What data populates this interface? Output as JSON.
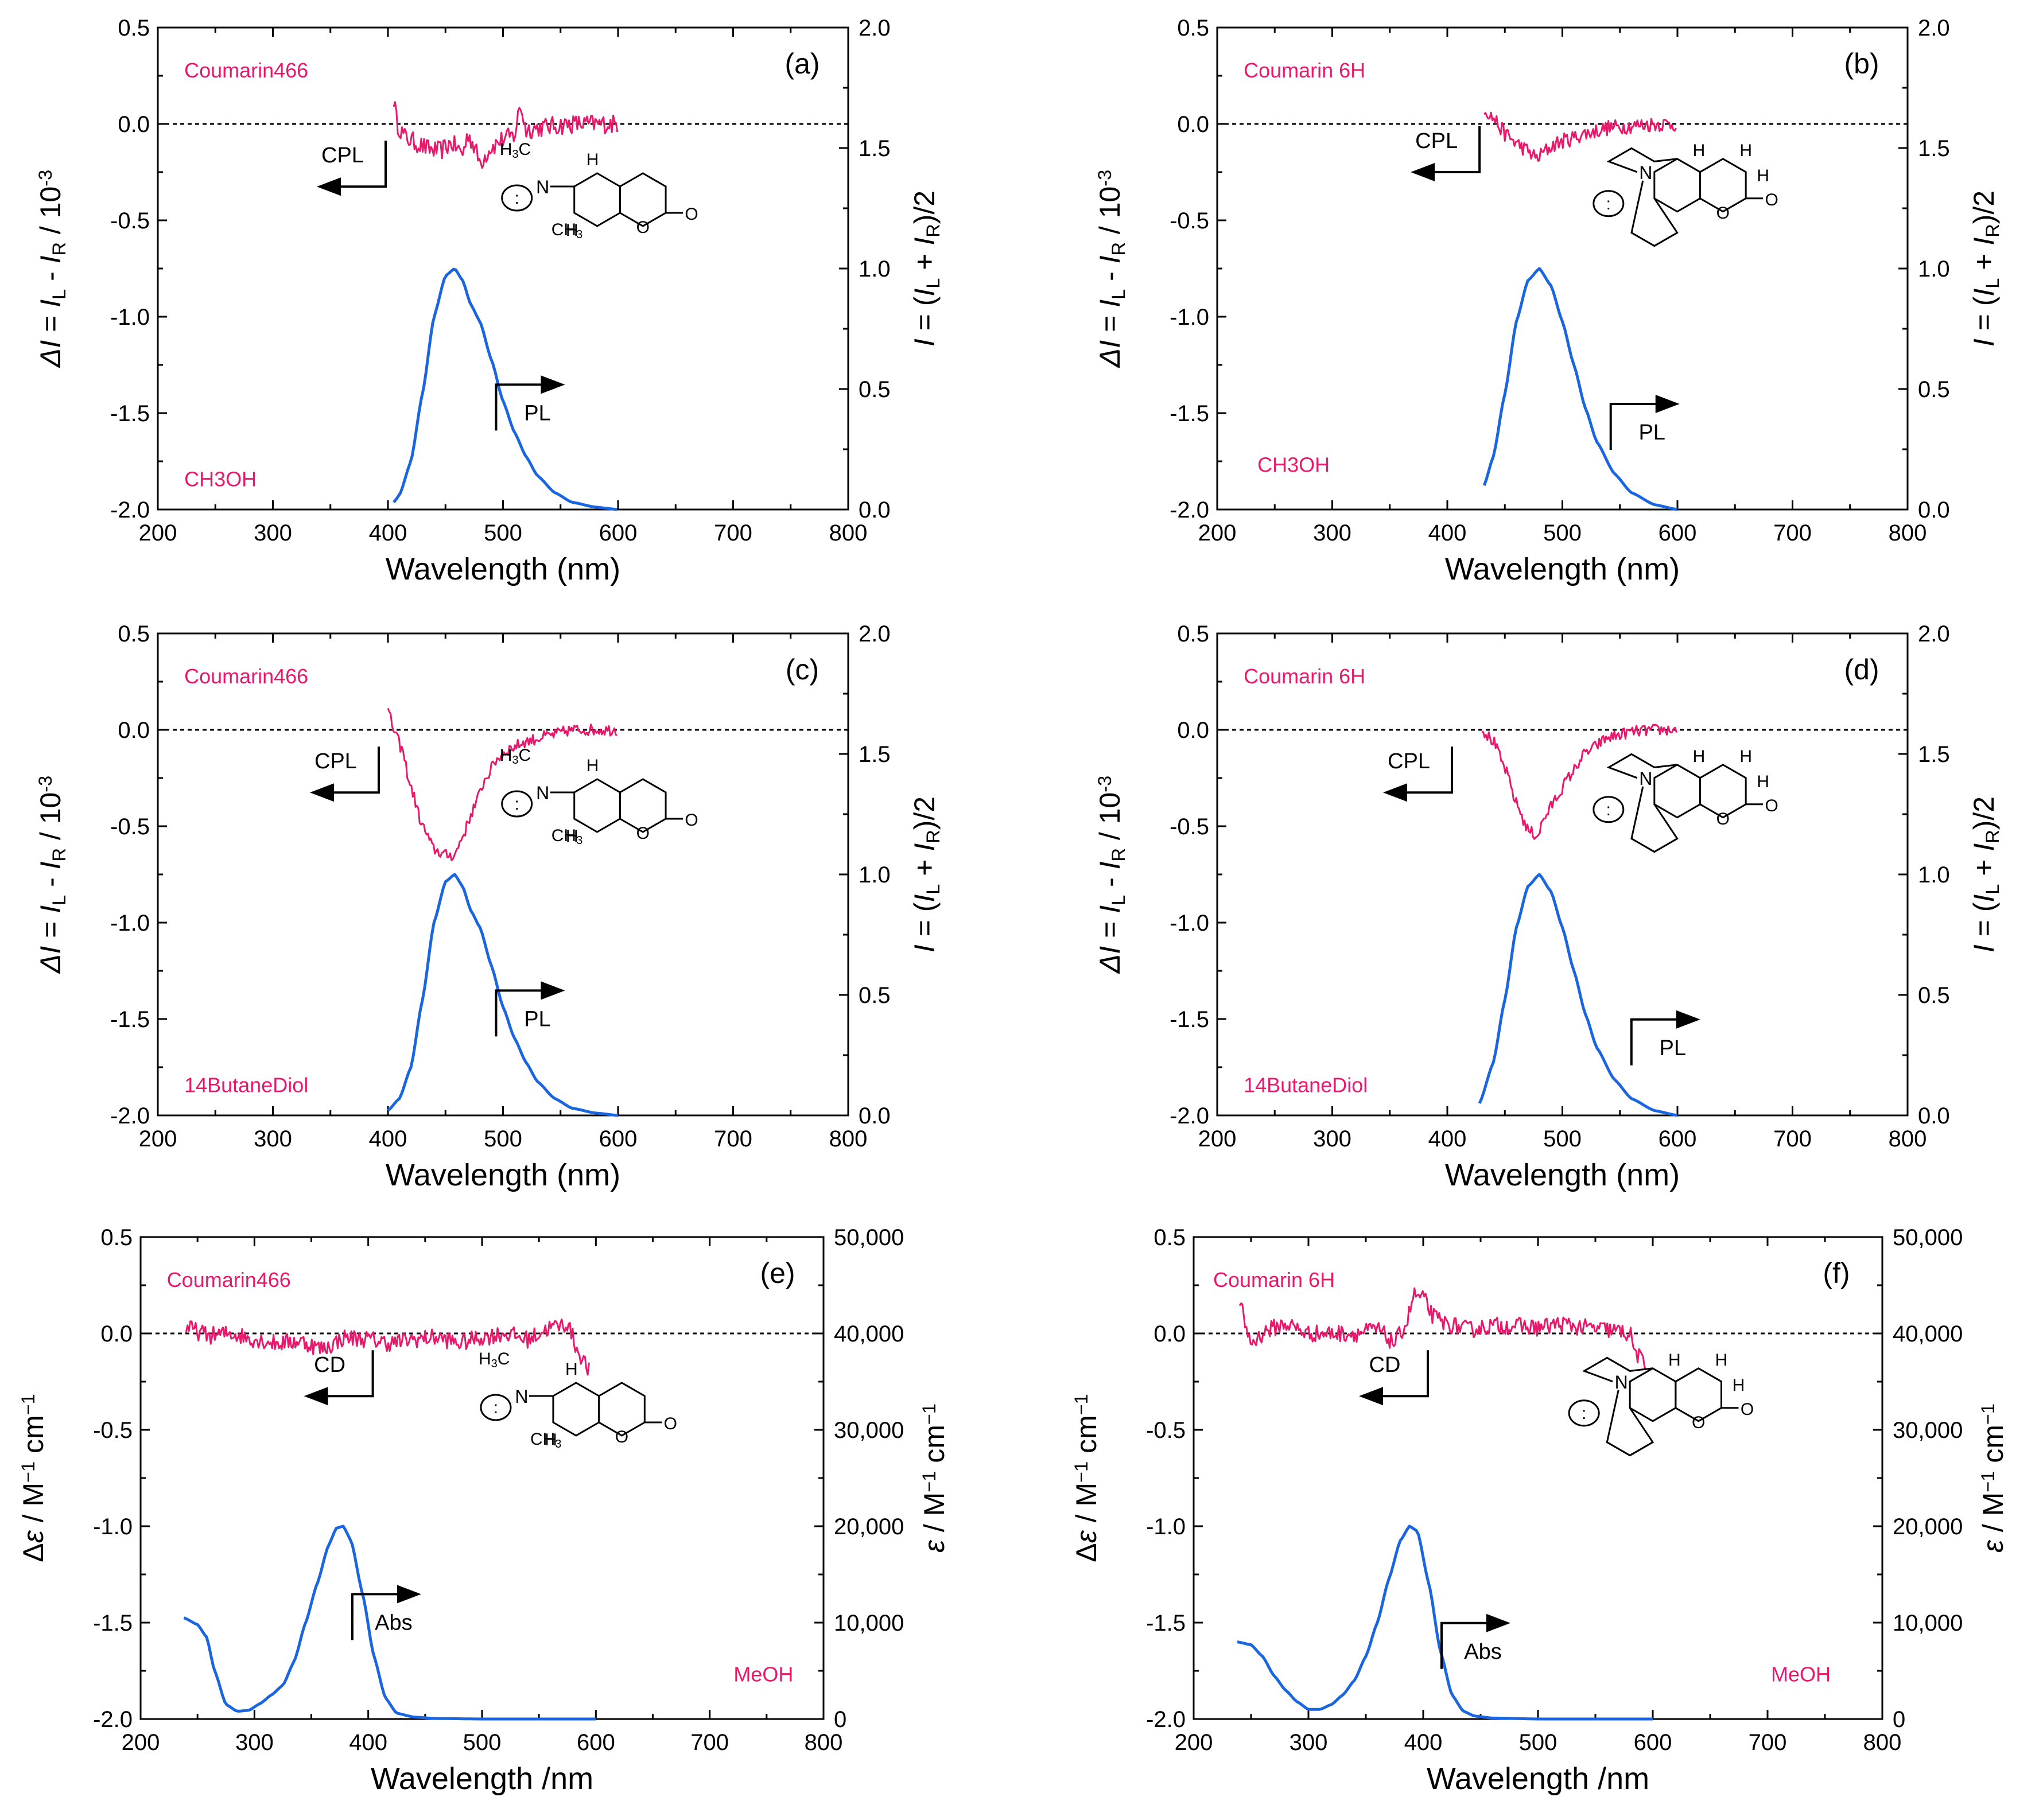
{
  "colors": {
    "cpl": "#e8186b",
    "pl": "#1a66e0",
    "axis": "#000000",
    "label": "#e8186b"
  },
  "chart_data": [
    {
      "type": "line",
      "panel": "(a)",
      "dye": "Coumarin466",
      "solvent": "CH3OH",
      "xlabel": "Wavelength (nm)",
      "xlim": [
        200,
        800
      ],
      "xticks": [
        200,
        300,
        400,
        500,
        600,
        700,
        800
      ],
      "ylabel_left": "ΔI = I_L - I_R / 10^-3",
      "ylim_left": [
        -2.0,
        0.5
      ],
      "yticks_left": [
        "0.5",
        "0.0",
        "-0.5",
        "-1.0",
        "-1.5",
        "-2.0"
      ],
      "ylabel_right": "I = (I_L + I_R)/2",
      "ylim_right": [
        0.0,
        2.0
      ],
      "yticks_right": [
        "2.0",
        "1.5",
        "1.0",
        "0.5",
        "0.0"
      ],
      "cpl_label": "CPL",
      "pl_label": "PL",
      "series": [
        {
          "name": "CPL",
          "axis": "left",
          "noise": 0.05,
          "x": [
            405,
            408,
            415,
            425,
            435,
            445,
            455,
            465,
            470,
            475,
            480,
            490,
            500,
            510,
            515,
            520,
            530,
            545,
            560,
            580,
            600
          ],
          "y": [
            0.13,
            0.0,
            -0.07,
            -0.1,
            -0.13,
            -0.14,
            -0.1,
            -0.15,
            -0.05,
            -0.12,
            -0.2,
            -0.12,
            -0.08,
            -0.06,
            0.1,
            -0.03,
            -0.02,
            -0.01,
            0.0,
            0.0,
            0.0
          ]
        },
        {
          "name": "PL",
          "axis": "right",
          "noise": 0,
          "x": [
            405,
            410,
            420,
            430,
            440,
            450,
            458,
            465,
            472,
            480,
            490,
            500,
            510,
            520,
            530,
            545,
            560,
            580,
            600
          ],
          "y": [
            0.03,
            0.06,
            0.2,
            0.48,
            0.8,
            0.97,
            1.0,
            0.95,
            0.85,
            0.78,
            0.62,
            0.45,
            0.32,
            0.22,
            0.14,
            0.07,
            0.03,
            0.01,
            0.0
          ]
        }
      ]
    },
    {
      "type": "line",
      "panel": "(b)",
      "dye": "Coumarin 6H",
      "solvent": "CH3OH",
      "xlabel": "Wavelength (nm)",
      "xlim": [
        200,
        800
      ],
      "xticks": [
        200,
        300,
        400,
        500,
        600,
        700,
        800
      ],
      "ylabel_left": "ΔI = I_L - I_R / 10^-3",
      "ylim_left": [
        -2.0,
        0.5
      ],
      "yticks_left": [
        "0.5",
        "0.0",
        "-0.5",
        "-1.0",
        "-1.5",
        "-2.0"
      ],
      "ylabel_right": "I = (I_L + I_R)/2",
      "ylim_right": [
        0.0,
        2.0
      ],
      "yticks_right": [
        "2.0",
        "1.5",
        "1.0",
        "0.5",
        "0.0"
      ],
      "cpl_label": "CPL",
      "pl_label": "PL",
      "series": [
        {
          "name": "CPL",
          "axis": "left",
          "noise": 0.04,
          "x": [
            432,
            440,
            450,
            460,
            470,
            478,
            485,
            495,
            505,
            520,
            540,
            560,
            580,
            600
          ],
          "y": [
            0.08,
            0.03,
            -0.05,
            -0.1,
            -0.14,
            -0.18,
            -0.14,
            -0.1,
            -0.08,
            -0.05,
            -0.02,
            -0.01,
            0.0,
            0.0
          ]
        },
        {
          "name": "PL",
          "axis": "right",
          "noise": 0,
          "x": [
            432,
            440,
            450,
            460,
            470,
            480,
            490,
            500,
            510,
            520,
            530,
            545,
            560,
            580,
            600
          ],
          "y": [
            0.1,
            0.22,
            0.48,
            0.78,
            0.95,
            1.0,
            0.93,
            0.78,
            0.6,
            0.42,
            0.28,
            0.15,
            0.07,
            0.02,
            0.0
          ]
        }
      ]
    },
    {
      "type": "line",
      "panel": "(c)",
      "dye": "Coumarin466",
      "solvent": "14ButaneDiol",
      "xlabel": "Wavelength (nm)",
      "xlim": [
        200,
        800
      ],
      "xticks": [
        200,
        300,
        400,
        500,
        600,
        700,
        800
      ],
      "ylabel_left": "ΔI = I_L - I_R / 10^-3",
      "ylim_left": [
        -2.0,
        0.5
      ],
      "yticks_left": [
        "0.5",
        "0.0",
        "-0.5",
        "-1.0",
        "-1.5",
        "-2.0"
      ],
      "ylabel_right": "I = (I_L + I_R)/2",
      "ylim_right": [
        0.0,
        2.0
      ],
      "yticks_right": [
        "2.0",
        "1.5",
        "1.0",
        "0.5",
        "0.0"
      ],
      "cpl_label": "CPL",
      "pl_label": "PL",
      "series": [
        {
          "name": "CPL",
          "axis": "left",
          "noise": 0.03,
          "x": [
            400,
            405,
            412,
            420,
            430,
            440,
            450,
            458,
            465,
            475,
            485,
            495,
            505,
            520,
            540,
            560,
            580,
            600
          ],
          "y": [
            0.1,
            0.0,
            -0.1,
            -0.3,
            -0.5,
            -0.62,
            -0.65,
            -0.65,
            -0.55,
            -0.4,
            -0.25,
            -0.15,
            -0.1,
            -0.06,
            -0.03,
            0.0,
            0.0,
            0.0
          ]
        },
        {
          "name": "PL",
          "axis": "right",
          "noise": 0,
          "x": [
            400,
            410,
            420,
            430,
            440,
            450,
            458,
            465,
            472,
            480,
            490,
            500,
            510,
            520,
            530,
            545,
            560,
            580,
            600
          ],
          "y": [
            0.02,
            0.07,
            0.2,
            0.48,
            0.8,
            0.97,
            1.0,
            0.95,
            0.85,
            0.78,
            0.62,
            0.45,
            0.32,
            0.22,
            0.14,
            0.07,
            0.03,
            0.01,
            0.0
          ]
        }
      ]
    },
    {
      "type": "line",
      "panel": "(d)",
      "dye": "Coumarin 6H",
      "solvent": "14ButaneDiol",
      "xlabel": "Wavelength (nm)",
      "xlim": [
        200,
        800
      ],
      "xticks": [
        200,
        300,
        400,
        500,
        600,
        700,
        800
      ],
      "ylabel_left": "ΔI = I_L - I_R / 10^-3",
      "ylim_left": [
        -2.0,
        0.5
      ],
      "yticks_left": [
        "0.5",
        "0.0",
        "-0.5",
        "-1.0",
        "-1.5",
        "-2.0"
      ],
      "ylabel_right": "I = (I_L + I_R)/2",
      "ylim_right": [
        0.0,
        2.0
      ],
      "yticks_right": [
        "2.0",
        "1.5",
        "1.0",
        "0.5",
        "0.0"
      ],
      "cpl_label": "CPL",
      "pl_label": "PL",
      "series": [
        {
          "name": "CPL",
          "axis": "left",
          "noise": 0.03,
          "x": [
            430,
            440,
            450,
            460,
            470,
            478,
            485,
            495,
            505,
            520,
            540,
            560,
            580,
            600
          ],
          "y": [
            0.0,
            -0.06,
            -0.2,
            -0.38,
            -0.52,
            -0.55,
            -0.45,
            -0.35,
            -0.25,
            -0.12,
            -0.04,
            -0.01,
            0.0,
            0.0
          ]
        },
        {
          "name": "PL",
          "axis": "right",
          "noise": 0,
          "x": [
            428,
            440,
            450,
            460,
            470,
            480,
            490,
            500,
            510,
            520,
            530,
            545,
            560,
            580,
            600
          ],
          "y": [
            0.05,
            0.22,
            0.48,
            0.78,
            0.95,
            1.0,
            0.93,
            0.78,
            0.6,
            0.42,
            0.28,
            0.15,
            0.07,
            0.02,
            0.0
          ]
        }
      ]
    },
    {
      "type": "line",
      "panel": "(e)",
      "dye": "Coumarin466",
      "solvent": "MeOH",
      "xlabel": "Wavelength /nm",
      "xlim": [
        200,
        800
      ],
      "xticks": [
        200,
        300,
        400,
        500,
        600,
        700,
        800
      ],
      "ylabel_left": "Δε / M^-1 cm^-1",
      "ylim_left": [
        -2.0,
        0.5
      ],
      "yticks_left": [
        "0.5",
        "0.0",
        "-0.5",
        "-1.0",
        "-1.5",
        "-2.0"
      ],
      "ylabel_right": "ε / M^-1 cm^-1",
      "ylim_right": [
        0,
        50000
      ],
      "yticks_right": [
        "50,000",
        "40,000",
        "30,000",
        "20,000",
        "10,000",
        "0"
      ],
      "cpl_label": "CD",
      "pl_label": "Abs",
      "series": [
        {
          "name": "CD",
          "axis": "left",
          "noise": 0.045,
          "x": [
            240,
            260,
            280,
            300,
            320,
            340,
            360,
            380,
            400,
            420,
            440,
            460,
            480,
            500,
            520,
            540,
            560,
            575,
            585,
            595
          ],
          "y": [
            0.03,
            -0.01,
            0.0,
            -0.03,
            -0.05,
            -0.04,
            -0.08,
            -0.02,
            -0.03,
            -0.05,
            -0.03,
            -0.02,
            -0.05,
            -0.02,
            0.0,
            -0.03,
            0.03,
            0.05,
            -0.1,
            -0.2
          ]
        },
        {
          "name": "Abs",
          "axis": "right",
          "noise": 0,
          "x": [
            238,
            250,
            258,
            265,
            275,
            285,
            295,
            305,
            315,
            325,
            335,
            345,
            355,
            365,
            372,
            378,
            385,
            395,
            405,
            415,
            425,
            440,
            460,
            500,
            550,
            600
          ],
          "y": [
            10500,
            9800,
            8500,
            5000,
            1500,
            800,
            900,
            1600,
            2500,
            3500,
            6000,
            10000,
            14000,
            18000,
            19800,
            20000,
            18500,
            13000,
            6500,
            2200,
            600,
            200,
            50,
            0,
            0,
            0
          ]
        }
      ]
    },
    {
      "type": "line",
      "panel": "(f)",
      "dye": "Coumarin 6H",
      "solvent": "MeOH",
      "xlabel": "Wavelength /nm",
      "xlim": [
        200,
        800
      ],
      "xticks": [
        200,
        300,
        400,
        500,
        600,
        700,
        800
      ],
      "ylabel_left": "Δε / M^-1 cm^-1",
      "ylim_left": [
        -2.0,
        0.5
      ],
      "yticks_left": [
        "0.5",
        "0.0",
        "-0.5",
        "-1.0",
        "-1.5",
        "-2.0"
      ],
      "ylabel_right": "ε / M^-1 cm^-1",
      "ylim_right": [
        0,
        50000
      ],
      "yticks_right": [
        "50,000",
        "40,000",
        "30,000",
        "20,000",
        "10,000",
        "0"
      ],
      "cpl_label": "CD",
      "pl_label": "Abs",
      "series": [
        {
          "name": "CD",
          "axis": "left",
          "noise": 0.045,
          "x": [
            240,
            250,
            265,
            280,
            300,
            320,
            340,
            360,
            375,
            385,
            392,
            400,
            410,
            420,
            440,
            460,
            480,
            500,
            520,
            540,
            560,
            580,
            585,
            595
          ],
          "y": [
            0.15,
            -0.05,
            0.02,
            0.05,
            0.0,
            0.0,
            0.0,
            0.02,
            -0.05,
            0.05,
            0.2,
            0.18,
            0.08,
            0.05,
            0.02,
            0.04,
            0.04,
            0.03,
            0.05,
            0.03,
            0.02,
            0.0,
            -0.1,
            -0.18
          ]
        },
        {
          "name": "Abs",
          "axis": "right",
          "noise": 0,
          "x": [
            238,
            250,
            260,
            270,
            280,
            290,
            300,
            310,
            320,
            330,
            340,
            350,
            360,
            370,
            380,
            388,
            395,
            405,
            415,
            425,
            435,
            445,
            460,
            500,
            550,
            600
          ],
          "y": [
            8000,
            7700,
            6500,
            4500,
            3000,
            1800,
            1000,
            1000,
            1500,
            2500,
            4000,
            6500,
            10000,
            14500,
            18500,
            20000,
            19500,
            14000,
            7000,
            2500,
            800,
            300,
            100,
            0,
            0,
            0
          ]
        }
      ]
    }
  ]
}
